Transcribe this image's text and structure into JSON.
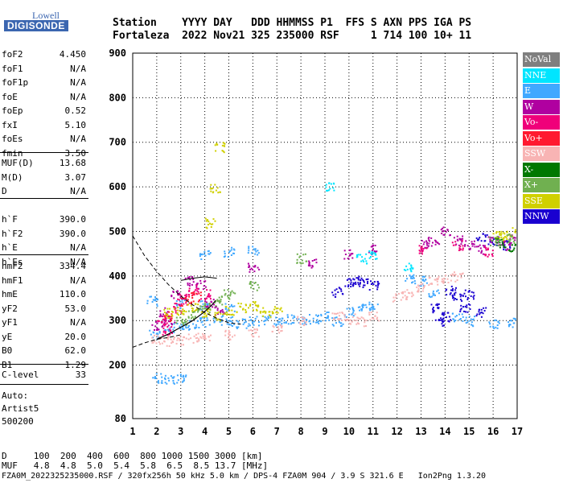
{
  "logo": {
    "top": "Lowell",
    "bottom": "DIGISONDE"
  },
  "header": {
    "line1": "Station    YYYY DAY   DDD HHMMSS P1  FFS S AXN PPS IGA PS",
    "line2": "Fortaleza  2022 Nov21 325 235000 RSF     1 714 100 10+ 11"
  },
  "params": {
    "group1": [
      {
        "name": "foF2",
        "value": "4.450"
      },
      {
        "name": "foF1",
        "value": "N/A"
      },
      {
        "name": "foF1p",
        "value": "N/A"
      },
      {
        "name": "foE",
        "value": "N/A"
      },
      {
        "name": "foEp",
        "value": "0.52"
      },
      {
        "name": "fxI",
        "value": "5.10"
      },
      {
        "name": "foEs",
        "value": "N/A"
      },
      {
        "name": "fmin",
        "value": "3.50"
      }
    ],
    "group2": [
      {
        "name": "MUF(D)",
        "value": "13.68"
      },
      {
        "name": "M(D)",
        "value": "3.07"
      },
      {
        "name": "D",
        "value": "N/A"
      }
    ],
    "group3": [
      {
        "name": "h`F",
        "value": "390.0"
      },
      {
        "name": "h`F2",
        "value": "390.0"
      },
      {
        "name": "h`E",
        "value": "N/A"
      },
      {
        "name": "h`Es",
        "value": "N/A"
      }
    ],
    "group4": [
      {
        "name": "hmF2",
        "value": "334.4"
      },
      {
        "name": "hmF1",
        "value": "N/A"
      },
      {
        "name": "hmE",
        "value": "110.0"
      },
      {
        "name": "yF2",
        "value": "53.0"
      },
      {
        "name": "yF1",
        "value": "N/A"
      },
      {
        "name": "yE",
        "value": "20.0"
      },
      {
        "name": "B0",
        "value": "62.0"
      },
      {
        "name": "B1",
        "value": "1.29"
      }
    ],
    "group5": [
      {
        "name": "C-level",
        "value": "33"
      }
    ]
  },
  "auto_info": [
    "Auto:",
    "Artist5",
    "500200"
  ],
  "legend": [
    {
      "label": "NoVal",
      "color": "#7f7f7f"
    },
    {
      "label": "NNE",
      "color": "#00e5ff"
    },
    {
      "label": "E",
      "color": "#40a8ff"
    },
    {
      "label": "W",
      "color": "#b000a0"
    },
    {
      "label": "Vo-",
      "color": "#f0007a"
    },
    {
      "label": "Vo+",
      "color": "#ff1a30"
    },
    {
      "label": "SSW",
      "color": "#f8b4b4"
    },
    {
      "label": "X-",
      "color": "#007800"
    },
    {
      "label": "X+",
      "color": "#70b050"
    },
    {
      "label": "SSE",
      "color": "#d0d000"
    },
    {
      "label": "NNW",
      "color": "#1a00d0"
    }
  ],
  "footer": {
    "d_line": "D     100  200  400  600  800 1000 1500 3000 [km]",
    "muf_line": "MUF   4.8  4.8  5.0  5.4  5.8  6.5  8.5 13.7 [MHz]",
    "file_line": "FZA0M_2022325235000.RSF / 320fx256h 50 kHz 5.0 km / DPS-4 FZA0M 904 / 3.9 S 321.6 E   Ion2Png 1.3.20"
  },
  "chart_data": {
    "type": "scatter",
    "xlabel": "",
    "ylabel": "",
    "xlim": [
      1,
      17
    ],
    "ylim": [
      80,
      900
    ],
    "x_ticks": [
      1,
      2,
      3,
      4,
      5,
      6,
      7,
      8,
      9,
      10,
      11,
      12,
      13,
      14,
      15,
      16,
      17
    ],
    "y_ticks": [
      80,
      200,
      300,
      400,
      500,
      600,
      700,
      800,
      900
    ],
    "grid": true,
    "series": [
      {
        "name": "E",
        "color": "#40a8ff",
        "points": [
          [
            1.9,
            270
          ],
          [
            2.5,
            285
          ],
          [
            3.0,
            288
          ],
          [
            3.5,
            292
          ],
          [
            4.0,
            298
          ],
          [
            4.5,
            302
          ],
          [
            5.0,
            300
          ],
          [
            5.5,
            295
          ],
          [
            6.0,
            300
          ],
          [
            6.5,
            302
          ],
          [
            7.0,
            300
          ],
          [
            7.5,
            305
          ],
          [
            8.0,
            303
          ],
          [
            8.5,
            305
          ],
          [
            9.0,
            310
          ],
          [
            9.5,
            300
          ],
          [
            10.0,
            320
          ],
          [
            10.5,
            330
          ],
          [
            11.0,
            335
          ],
          [
            12.5,
            395
          ],
          [
            13.0,
            390
          ],
          [
            13.5,
            360
          ],
          [
            14.5,
            310
          ],
          [
            15.0,
            300
          ],
          [
            16.0,
            295
          ],
          [
            16.8,
            298
          ],
          [
            1.8,
            345
          ],
          [
            3.0,
            340
          ],
          [
            4.0,
            335
          ],
          [
            5.0,
            330
          ],
          [
            4.0,
            450
          ],
          [
            5.0,
            455
          ],
          [
            6.0,
            460
          ],
          [
            2.0,
            172
          ],
          [
            2.5,
            170
          ],
          [
            3.0,
            171
          ]
        ]
      },
      {
        "name": "SSW",
        "color": "#f8b4b4",
        "points": [
          [
            2.0,
            258
          ],
          [
            2.5,
            255
          ],
          [
            3.0,
            257
          ],
          [
            3.5,
            262
          ],
          [
            4.0,
            265
          ],
          [
            5.0,
            270
          ],
          [
            6.0,
            272
          ],
          [
            7.0,
            285
          ],
          [
            8.0,
            300
          ],
          [
            9.5,
            310
          ],
          [
            10.0,
            305
          ],
          [
            10.5,
            300
          ],
          [
            11.0,
            310
          ],
          [
            12.0,
            355
          ],
          [
            12.5,
            360
          ],
          [
            13.0,
            375
          ],
          [
            13.5,
            390
          ],
          [
            14.0,
            395
          ],
          [
            14.5,
            400
          ]
        ]
      },
      {
        "name": "NNW",
        "color": "#1a00d0",
        "points": [
          [
            9.5,
            365
          ],
          [
            10.0,
            385
          ],
          [
            10.3,
            390
          ],
          [
            10.6,
            385
          ],
          [
            11.0,
            380
          ],
          [
            14.2,
            370
          ],
          [
            14.5,
            350
          ],
          [
            14.8,
            330
          ],
          [
            15.0,
            360
          ],
          [
            15.5,
            320
          ],
          [
            13.5,
            330
          ],
          [
            13.8,
            300
          ],
          [
            14.0,
            310
          ],
          [
            16.0,
            480
          ],
          [
            16.5,
            470
          ],
          [
            15.5,
            490
          ]
        ]
      },
      {
        "name": "W",
        "color": "#b000a0",
        "points": [
          [
            2.0,
            290
          ],
          [
            2.3,
            320
          ],
          [
            2.8,
            360
          ],
          [
            3.3,
            390
          ],
          [
            3.8,
            380
          ],
          [
            4.2,
            340
          ],
          [
            4.6,
            325
          ],
          [
            2.5,
            300
          ],
          [
            13.2,
            470
          ],
          [
            13.5,
            480
          ],
          [
            14.0,
            500
          ],
          [
            14.5,
            480
          ],
          [
            15.0,
            470
          ],
          [
            15.5,
            460
          ],
          [
            16.0,
            480
          ],
          [
            16.5,
            470
          ],
          [
            16.9,
            490
          ],
          [
            10.0,
            450
          ],
          [
            11.0,
            460
          ],
          [
            8.5,
            430
          ],
          [
            6.0,
            420
          ]
        ]
      },
      {
        "name": "Vo-",
        "color": "#f0007a",
        "points": [
          [
            2.2,
            300
          ],
          [
            2.8,
            330
          ],
          [
            3.0,
            350
          ],
          [
            3.5,
            370
          ],
          [
            4.0,
            360
          ],
          [
            2.4,
            280
          ],
          [
            13.0,
            460
          ],
          [
            14.5,
            470
          ],
          [
            15.8,
            455
          ]
        ]
      },
      {
        "name": "Vo+",
        "color": "#ff1a30",
        "points": [
          [
            2.5,
            310
          ],
          [
            3.2,
            345
          ],
          [
            3.6,
            355
          ]
        ]
      },
      {
        "name": "SSE",
        "color": "#d0d000",
        "points": [
          [
            2.5,
            318
          ],
          [
            3.0,
            325
          ],
          [
            3.5,
            330
          ],
          [
            4.0,
            320
          ],
          [
            4.5,
            310
          ],
          [
            5.0,
            325
          ],
          [
            5.5,
            330
          ],
          [
            6.0,
            335
          ],
          [
            6.5,
            320
          ],
          [
            7.0,
            325
          ],
          [
            4.2,
            520
          ],
          [
            4.4,
            600
          ],
          [
            4.6,
            690
          ],
          [
            16.2,
            490
          ],
          [
            16.5,
            495
          ],
          [
            16.9,
            500
          ]
        ]
      },
      {
        "name": "X+",
        "color": "#70b050",
        "points": [
          [
            3.0,
            300
          ],
          [
            3.5,
            315
          ],
          [
            4.0,
            330
          ],
          [
            4.5,
            345
          ],
          [
            5.0,
            360
          ],
          [
            6.0,
            380
          ],
          [
            8.0,
            440
          ],
          [
            16.0,
            480
          ],
          [
            16.7,
            485
          ]
        ]
      },
      {
        "name": "NNE",
        "color": "#00e5ff",
        "points": [
          [
            9.2,
            600
          ],
          [
            10.5,
            440
          ],
          [
            11.0,
            450
          ],
          [
            12.5,
            420
          ]
        ]
      },
      {
        "name": "X-",
        "color": "#007800",
        "points": [
          [
            16.3,
            475
          ],
          [
            16.8,
            465
          ]
        ]
      }
    ],
    "trace_dashed": [
      [
        1.0,
        490
      ],
      [
        1.5,
        445
      ],
      [
        2.0,
        410
      ],
      [
        2.5,
        380
      ],
      [
        3.0,
        355
      ],
      [
        3.5,
        335
      ],
      [
        4.0,
        318
      ],
      [
        4.5,
        305
      ],
      [
        5.0,
        295
      ],
      [
        5.5,
        292
      ]
    ],
    "trace_lower": [
      [
        1.0,
        240
      ],
      [
        1.5,
        250
      ],
      [
        2.0,
        258
      ],
      [
        2.5,
        262
      ],
      [
        3.0,
        268
      ]
    ],
    "trace_profile": [
      [
        2.0,
        258
      ],
      [
        2.5,
        270
      ],
      [
        3.0,
        285
      ],
      [
        3.5,
        300
      ],
      [
        4.0,
        320
      ],
      [
        4.3,
        335
      ],
      [
        4.45,
        345
      ]
    ],
    "trace_upper": [
      [
        3.0,
        390
      ],
      [
        3.5,
        395
      ],
      [
        4.0,
        398
      ],
      [
        4.5,
        395
      ]
    ]
  }
}
